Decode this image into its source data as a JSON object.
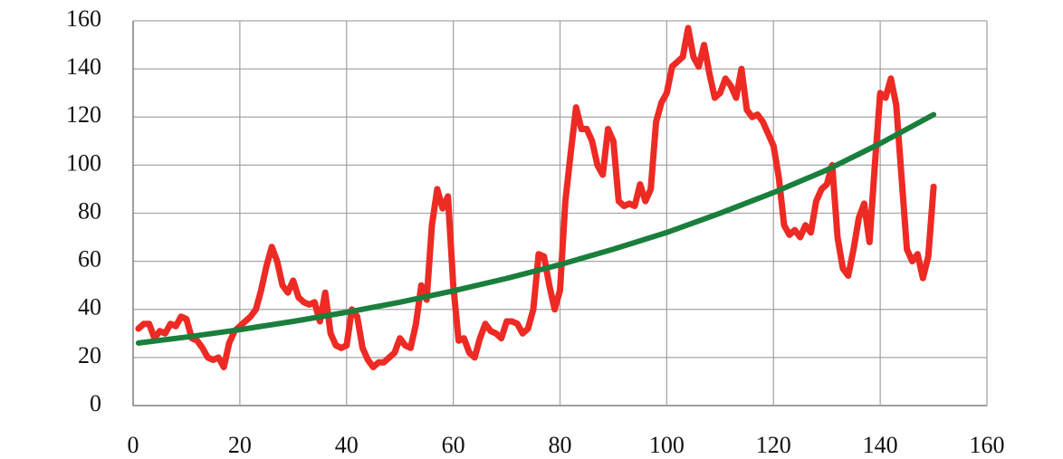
{
  "chart_data": {
    "type": "line",
    "xlim": [
      0,
      160
    ],
    "xticks": [
      0,
      20,
      40,
      60,
      80,
      100,
      120,
      140,
      160
    ],
    "ylim": [
      0,
      160
    ],
    "yticks": [
      0,
      20,
      40,
      60,
      80,
      100,
      120,
      140,
      160
    ],
    "grid": true,
    "series": [
      {
        "color": "#ee2a24",
        "x": [
          1,
          2,
          3,
          4,
          5,
          6,
          7,
          8,
          9,
          10,
          11,
          12,
          13,
          14,
          15,
          16,
          17,
          18,
          19,
          20,
          21,
          22,
          23,
          24,
          25,
          26,
          27,
          28,
          29,
          30,
          31,
          32,
          33,
          34,
          35,
          36,
          37,
          38,
          39,
          40,
          41,
          42,
          43,
          44,
          45,
          46,
          47,
          48,
          49,
          50,
          51,
          52,
          53,
          54,
          55,
          56,
          57,
          58,
          59,
          60,
          61,
          62,
          63,
          64,
          65,
          66,
          67,
          68,
          69,
          70,
          71,
          72,
          73,
          74,
          75,
          76,
          77,
          78,
          79,
          80,
          81,
          82,
          83,
          84,
          85,
          86,
          87,
          88,
          89,
          90,
          91,
          92,
          93,
          94,
          95,
          96,
          97,
          98,
          99,
          100,
          101,
          102,
          103,
          104,
          105,
          106,
          107,
          108,
          109,
          110,
          111,
          112,
          113,
          114,
          115,
          116,
          117,
          118,
          119,
          120,
          121,
          122,
          123,
          124,
          125,
          126,
          127,
          128,
          129,
          130,
          131,
          132,
          133,
          134,
          135,
          136,
          137,
          138,
          139,
          140,
          141,
          142,
          143,
          144,
          145,
          146,
          147,
          148,
          149,
          150
        ],
        "values": [
          32,
          34,
          34,
          28,
          31,
          30,
          34,
          33,
          37,
          36,
          28,
          27,
          24,
          20,
          19,
          20,
          16,
          26,
          31,
          33,
          35,
          37,
          40,
          48,
          58,
          66,
          60,
          50,
          47,
          52,
          45,
          43,
          42,
          43,
          35,
          47,
          30,
          25,
          24,
          25,
          40,
          37,
          24,
          19,
          16,
          18,
          18,
          20,
          22,
          28,
          25,
          24,
          34,
          50,
          44,
          75,
          90,
          82,
          87,
          50,
          27,
          28,
          22,
          20,
          28,
          34,
          31,
          30,
          28,
          35,
          35,
          34,
          30,
          32,
          40,
          63,
          62,
          50,
          40,
          48,
          85,
          105,
          124,
          115,
          115,
          110,
          100,
          96,
          115,
          110,
          85,
          83,
          84,
          83,
          92,
          85,
          90,
          118,
          126,
          130,
          141,
          143,
          145,
          157,
          145,
          141,
          150,
          138,
          128,
          130,
          136,
          133,
          128,
          140,
          123,
          120,
          121,
          118,
          113,
          108,
          95,
          75,
          71,
          73,
          70,
          75,
          72,
          85,
          90,
          92,
          100,
          70,
          57,
          54,
          65,
          78,
          84,
          68,
          100,
          130,
          128,
          136,
          125,
          95,
          65,
          60,
          63,
          53,
          62,
          91
        ]
      },
      {
        "color": "#1a7f3c",
        "x": [
          1,
          10,
          20,
          30,
          40,
          50,
          60,
          70,
          80,
          90,
          100,
          110,
          120,
          130,
          140,
          150
        ],
        "values": [
          26,
          28.5,
          31.6,
          35,
          38.8,
          43,
          47.7,
          52.9,
          58.6,
          65,
          72,
          80,
          88.6,
          98,
          109,
          121
        ]
      }
    ]
  }
}
